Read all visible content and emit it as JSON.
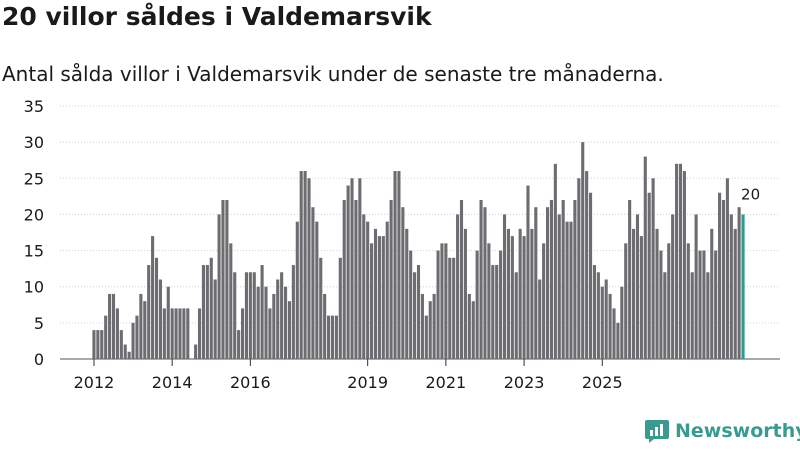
{
  "header": {
    "title": "20 villor såldes i Valdemarsvik",
    "subtitle": "Antal sålda villor i Valdemarsvik under de senaste tre månaderna."
  },
  "brand": {
    "name": "Newsworthy",
    "color": "#3a9a8f"
  },
  "colors": {
    "bar": "#6d6c70",
    "highlight": "#2a9d8f",
    "text": "#1a1a1a"
  },
  "chart_data": {
    "type": "bar",
    "title": "20 villor såldes i Valdemarsvik",
    "xlabel": "",
    "ylabel": "",
    "ylim": [
      0,
      35
    ],
    "yticks": [
      0,
      5,
      10,
      15,
      20,
      25,
      30,
      35
    ],
    "x_tick_labels": [
      "2012",
      "2014",
      "2016",
      "2019",
      "2021",
      "2023",
      "2025"
    ],
    "x_tick_months": [
      0,
      20,
      40,
      70,
      90,
      110,
      130
    ],
    "highlight_label": "20",
    "values": [
      4,
      4,
      4,
      6,
      9,
      9,
      7,
      4,
      2,
      1,
      5,
      6,
      9,
      8,
      13,
      17,
      14,
      11,
      7,
      10,
      7,
      7,
      7,
      7,
      7,
      0,
      2,
      7,
      13,
      13,
      14,
      11,
      20,
      22,
      22,
      16,
      12,
      4,
      7,
      12,
      12,
      12,
      10,
      13,
      10,
      7,
      9,
      11,
      12,
      10,
      8,
      13,
      19,
      26,
      26,
      25,
      21,
      19,
      14,
      9,
      6,
      6,
      6,
      14,
      22,
      24,
      25,
      22,
      25,
      20,
      19,
      16,
      18,
      17,
      17,
      19,
      22,
      26,
      26,
      21,
      18,
      15,
      12,
      13,
      9,
      6,
      8,
      9,
      15,
      16,
      16,
      14,
      14,
      20,
      22,
      18,
      9,
      8,
      15,
      22,
      21,
      16,
      13,
      13,
      15,
      20,
      18,
      17,
      12,
      18,
      17,
      24,
      18,
      21,
      11,
      16,
      21,
      22,
      27,
      20,
      22,
      19,
      19,
      22,
      25,
      30,
      26,
      23,
      13,
      12,
      10,
      11,
      9,
      7,
      5,
      10,
      16,
      22,
      18,
      20,
      17,
      28,
      23,
      25,
      18,
      15,
      12,
      16,
      20,
      27,
      27,
      26,
      16,
      12,
      20,
      15,
      15,
      12,
      18,
      15,
      23,
      22,
      25,
      20,
      18,
      21,
      20
    ]
  }
}
